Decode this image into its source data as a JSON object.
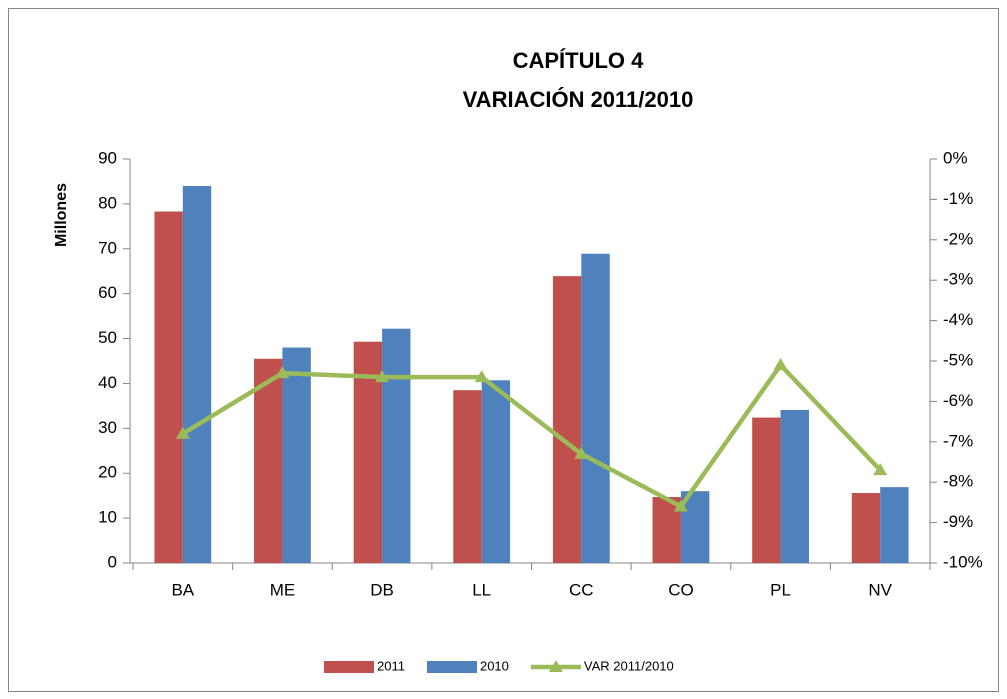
{
  "chart_data": {
    "type": "bar",
    "title": [
      "CAPÍTULO 4",
      "VARIACIÓN 2011/2010"
    ],
    "y_label": "Millones",
    "categories": [
      "BA",
      "ME",
      "DB",
      "LL",
      "CC",
      "CO",
      "PL",
      "NV"
    ],
    "series": [
      {
        "name": "2011",
        "color": "#c0504d",
        "type": "bar",
        "values": [
          78.3,
          45.5,
          49.3,
          38.5,
          63.9,
          14.7,
          32.4,
          15.6
        ]
      },
      {
        "name": "2010",
        "color": "#4f81bd",
        "type": "bar",
        "values": [
          84.0,
          48.0,
          52.2,
          40.7,
          68.9,
          16.0,
          34.1,
          16.9
        ]
      },
      {
        "name": "VAR 2011/2010",
        "color": "#9bbb59",
        "type": "line",
        "axis": "y2",
        "values": [
          -6.8,
          -5.3,
          -5.4,
          -5.4,
          -7.3,
          -8.6,
          -5.1,
          -7.7
        ]
      }
    ],
    "ylim": [
      0,
      90
    ],
    "yticks": [
      0,
      10,
      20,
      30,
      40,
      50,
      60,
      70,
      80,
      90
    ],
    "y2lim": [
      -10,
      0
    ],
    "y2ticks": [
      {
        "value": 0,
        "label": "0%"
      },
      {
        "value": -1,
        "label": "-1%"
      },
      {
        "value": -2,
        "label": "-2%"
      },
      {
        "value": -3,
        "label": "-3%"
      },
      {
        "value": -4,
        "label": "-4%"
      },
      {
        "value": -5,
        "label": "-5%"
      },
      {
        "value": -6,
        "label": "-6%"
      },
      {
        "value": -7,
        "label": "-7%"
      },
      {
        "value": -8,
        "label": "-8%"
      },
      {
        "value": -9,
        "label": "-9%"
      },
      {
        "value": -10,
        "label": "-10%"
      }
    ],
    "legend": "bottom",
    "grid": false
  }
}
